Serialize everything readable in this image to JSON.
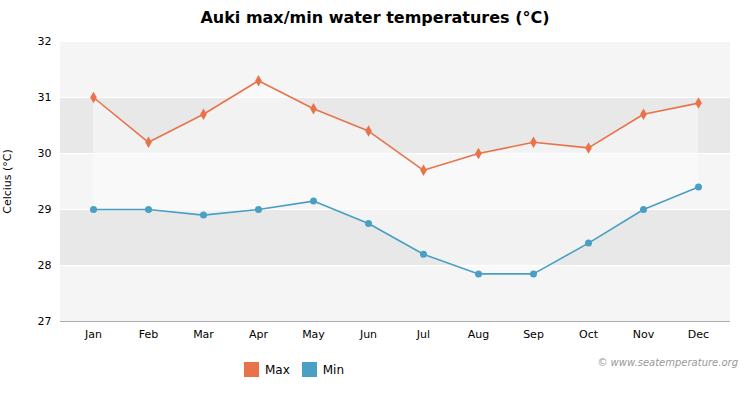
{
  "chart_data": {
    "type": "line",
    "title": "Auki max/min water temperatures (°C)",
    "ylabel": "Celcius (°C)",
    "annotation": "© www.seatemperature.org",
    "categories": [
      "Jan",
      "Feb",
      "Mar",
      "Apr",
      "May",
      "Jun",
      "Jul",
      "Aug",
      "Sep",
      "Oct",
      "Nov",
      "Dec"
    ],
    "series": [
      {
        "name": "Max",
        "color": "#E8734A",
        "marker": "diamond",
        "values": [
          31.0,
          30.2,
          30.7,
          31.3,
          30.8,
          30.4,
          29.7,
          30.0,
          30.2,
          30.1,
          30.7,
          30.9
        ]
      },
      {
        "name": "Min",
        "color": "#4A9FC4",
        "marker": "circle",
        "values": [
          29.0,
          29.0,
          28.9,
          29.0,
          29.15,
          28.75,
          28.2,
          27.85,
          27.85,
          28.4,
          29.0,
          29.4
        ]
      }
    ],
    "ylim": [
      27,
      32
    ],
    "yticks": [
      27,
      28,
      29,
      30,
      31,
      32
    ],
    "grid": true,
    "legend": "bottom"
  }
}
